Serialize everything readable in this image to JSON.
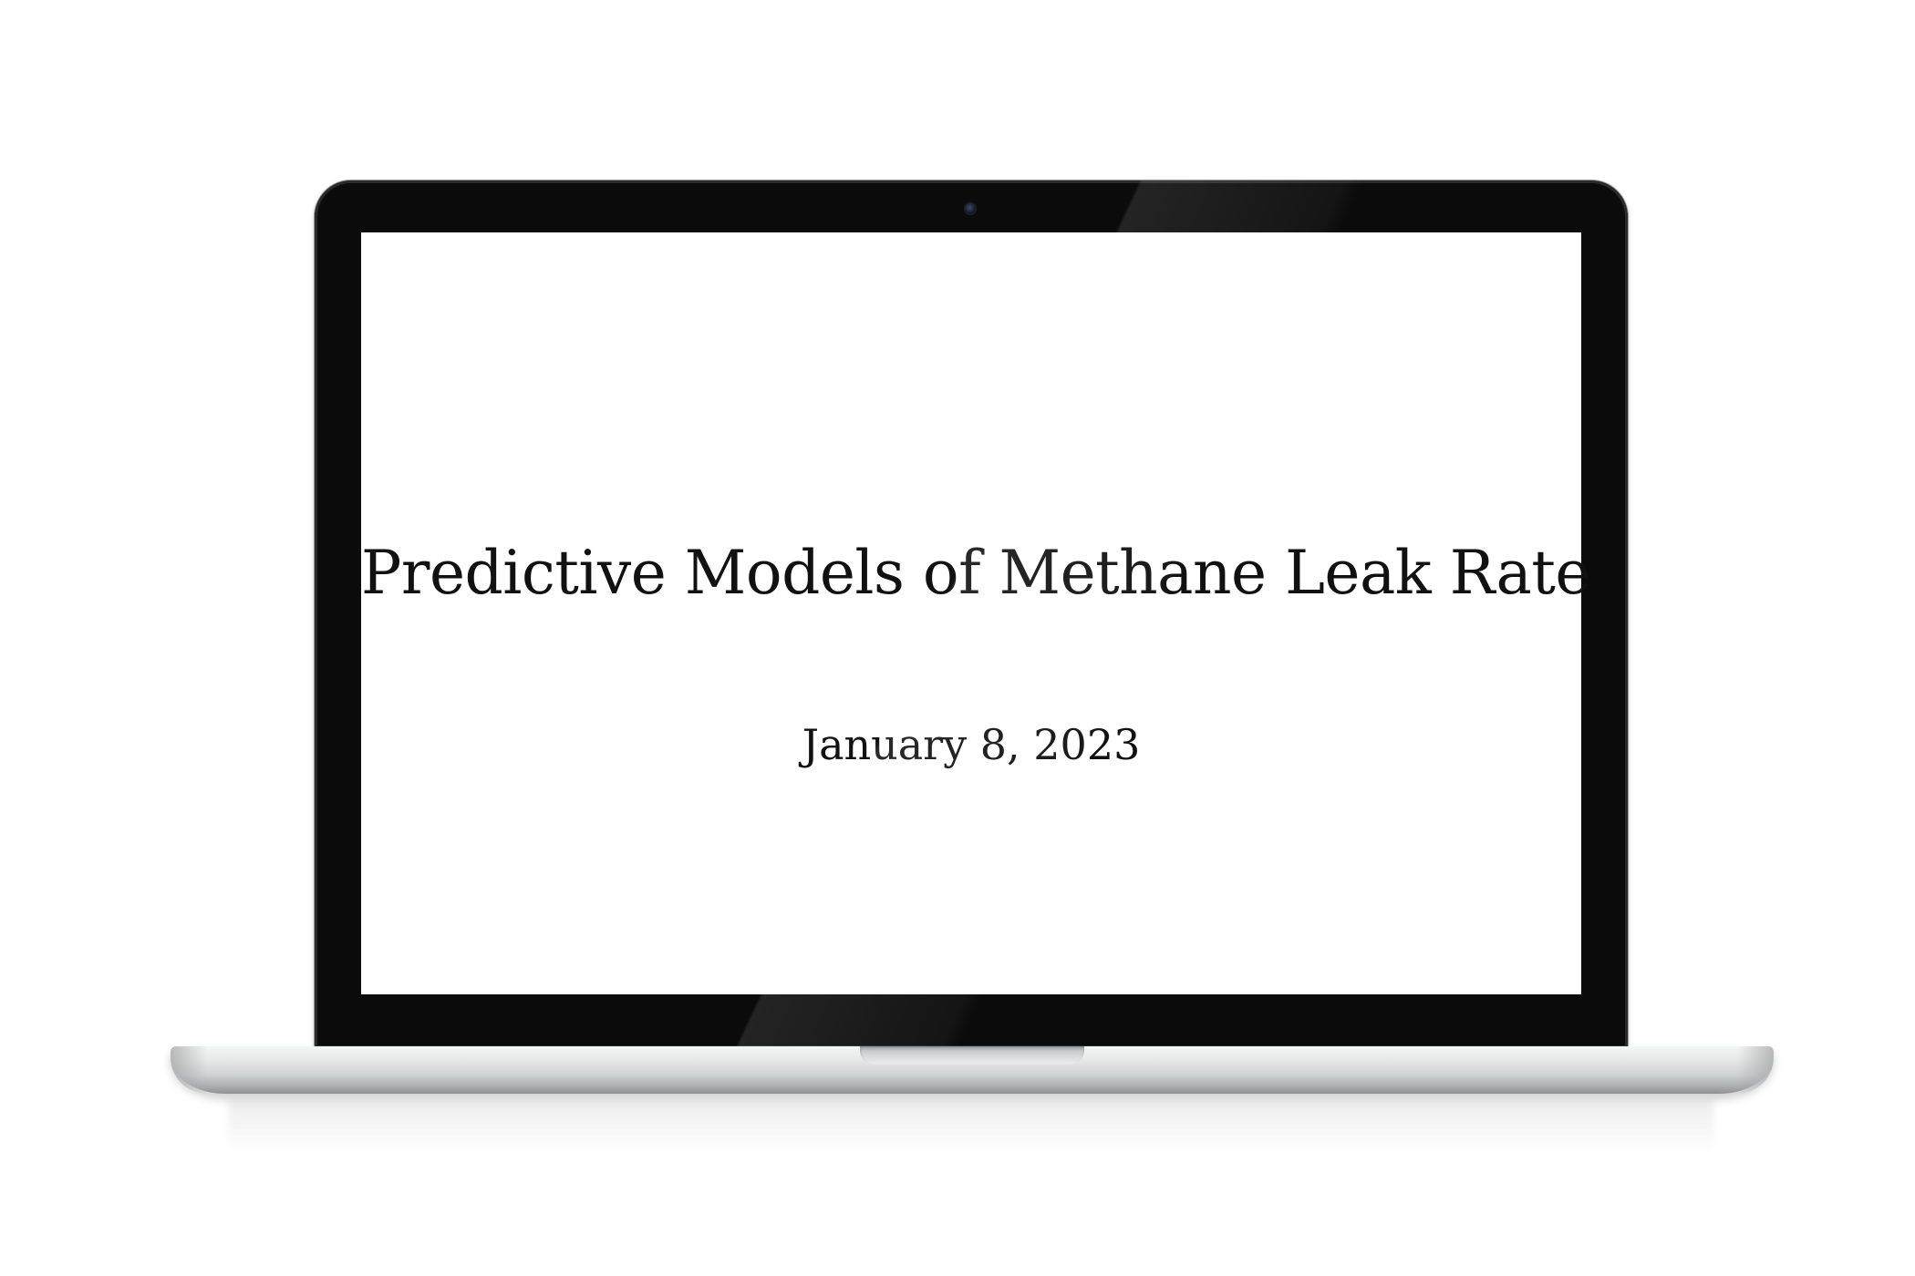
{
  "slide": {
    "title": "Predictive Models of Methane Leak Rate",
    "date": "January 8, 2023"
  },
  "device": {
    "icons": [
      "camera-icon"
    ],
    "bezel_color": "#0b0b0b",
    "body_color": "#d7d9da"
  }
}
